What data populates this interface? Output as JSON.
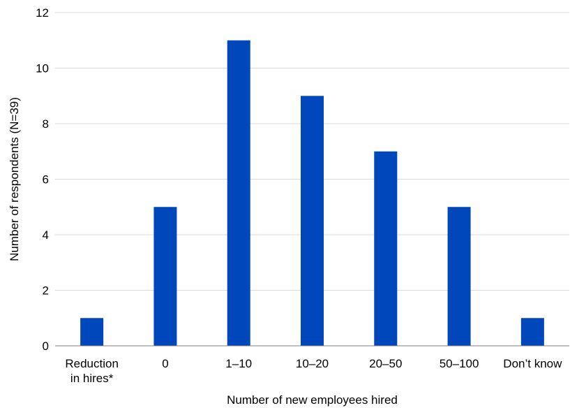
{
  "chart_data": {
    "type": "bar",
    "categories": [
      [
        "Reduction",
        "in hires*"
      ],
      [
        "0"
      ],
      [
        "1–10"
      ],
      [
        "10–20"
      ],
      [
        "20–50"
      ],
      [
        "50–100"
      ],
      [
        "Don’t know"
      ]
    ],
    "values": [
      1,
      5,
      11,
      9,
      7,
      5,
      1
    ],
    "xlabel": "Number of new employees hired",
    "ylabel": "Number of respondents (N=39)",
    "ylim": [
      0,
      12
    ],
    "yticks": [
      0,
      2,
      4,
      6,
      8,
      10,
      12
    ],
    "grid": true,
    "bar_color": "#0047bb",
    "grid_color": "#d9d9d9",
    "axis_color": "#7f7f7f"
  }
}
